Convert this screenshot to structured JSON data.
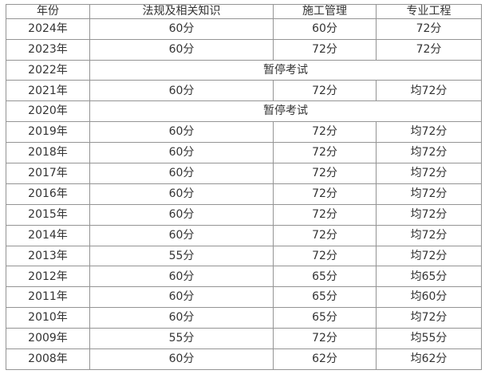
{
  "colors": {
    "background": "#ffffff",
    "border": "#949494",
    "text": "#333333"
  },
  "table": {
    "columns": [
      "年份",
      "法规及相关知识",
      "施工管理",
      "专业工程"
    ],
    "suspended_label": "暂停考试",
    "rows": [
      {
        "year": "2024年",
        "cells": [
          "60分",
          "60分",
          "72分"
        ]
      },
      {
        "year": "2023年",
        "cells": [
          "60分",
          "72分",
          "72分"
        ]
      },
      {
        "year": "2022年",
        "merged": "暂停考试"
      },
      {
        "year": "2021年",
        "cells": [
          "60分",
          "72分",
          "均72分"
        ]
      },
      {
        "year": "2020年",
        "merged": "暂停考试"
      },
      {
        "year": "2019年",
        "cells": [
          "60分",
          "72分",
          "均72分"
        ]
      },
      {
        "year": "2018年",
        "cells": [
          "60分",
          "72分",
          "均72分"
        ]
      },
      {
        "year": "2017年",
        "cells": [
          "60分",
          "72分",
          "均72分"
        ]
      },
      {
        "year": "2016年",
        "cells": [
          "60分",
          "72分",
          "均72分"
        ]
      },
      {
        "year": "2015年",
        "cells": [
          "60分",
          "72分",
          "均72分"
        ]
      },
      {
        "year": "2014年",
        "cells": [
          "60分",
          "72分",
          "均72分"
        ]
      },
      {
        "year": "2013年",
        "cells": [
          "55分",
          "72分",
          "均72分"
        ]
      },
      {
        "year": "2012年",
        "cells": [
          "60分",
          "65分",
          "均65分"
        ]
      },
      {
        "year": "2011年",
        "cells": [
          "60分",
          "65分",
          "均60分"
        ]
      },
      {
        "year": "2010年",
        "cells": [
          "60分",
          "65分",
          "均72分"
        ]
      },
      {
        "year": "2009年",
        "cells": [
          "55分",
          "72分",
          "均55分"
        ]
      },
      {
        "year": "2008年",
        "cells": [
          "60分",
          "62分",
          "均62分"
        ]
      }
    ]
  },
  "chart_data": {
    "type": "table",
    "title": "",
    "columns": [
      "年份",
      "法规及相关知识",
      "施工管理",
      "专业工程"
    ],
    "rows": [
      [
        "2024年",
        "60分",
        "60分",
        "72分"
      ],
      [
        "2023年",
        "60分",
        "72分",
        "72分"
      ],
      [
        "2022年",
        "暂停考试"
      ],
      [
        "2021年",
        "60分",
        "72分",
        "均72分"
      ],
      [
        "2020年",
        "暂停考试"
      ],
      [
        "2019年",
        "60分",
        "72分",
        "均72分"
      ],
      [
        "2018年",
        "60分",
        "72分",
        "均72分"
      ],
      [
        "2017年",
        "60分",
        "72分",
        "均72分"
      ],
      [
        "2016年",
        "60分",
        "72分",
        "均72分"
      ],
      [
        "2015年",
        "60分",
        "72分",
        "均72分"
      ],
      [
        "2014年",
        "60分",
        "72分",
        "均72分"
      ],
      [
        "2013年",
        "55分",
        "72分",
        "均72分"
      ],
      [
        "2012年",
        "60分",
        "65分",
        "均65分"
      ],
      [
        "2011年",
        "60分",
        "65分",
        "均60分"
      ],
      [
        "2010年",
        "60分",
        "65分",
        "均72分"
      ],
      [
        "2009年",
        "55分",
        "72分",
        "均55分"
      ],
      [
        "2008年",
        "60分",
        "62分",
        "均62分"
      ]
    ],
    "merged_rows_note": "Rows 2022年 and 2020年 have a single cell spanning the last 3 columns",
    "layout": {
      "grid": true,
      "text_align": "center"
    }
  }
}
